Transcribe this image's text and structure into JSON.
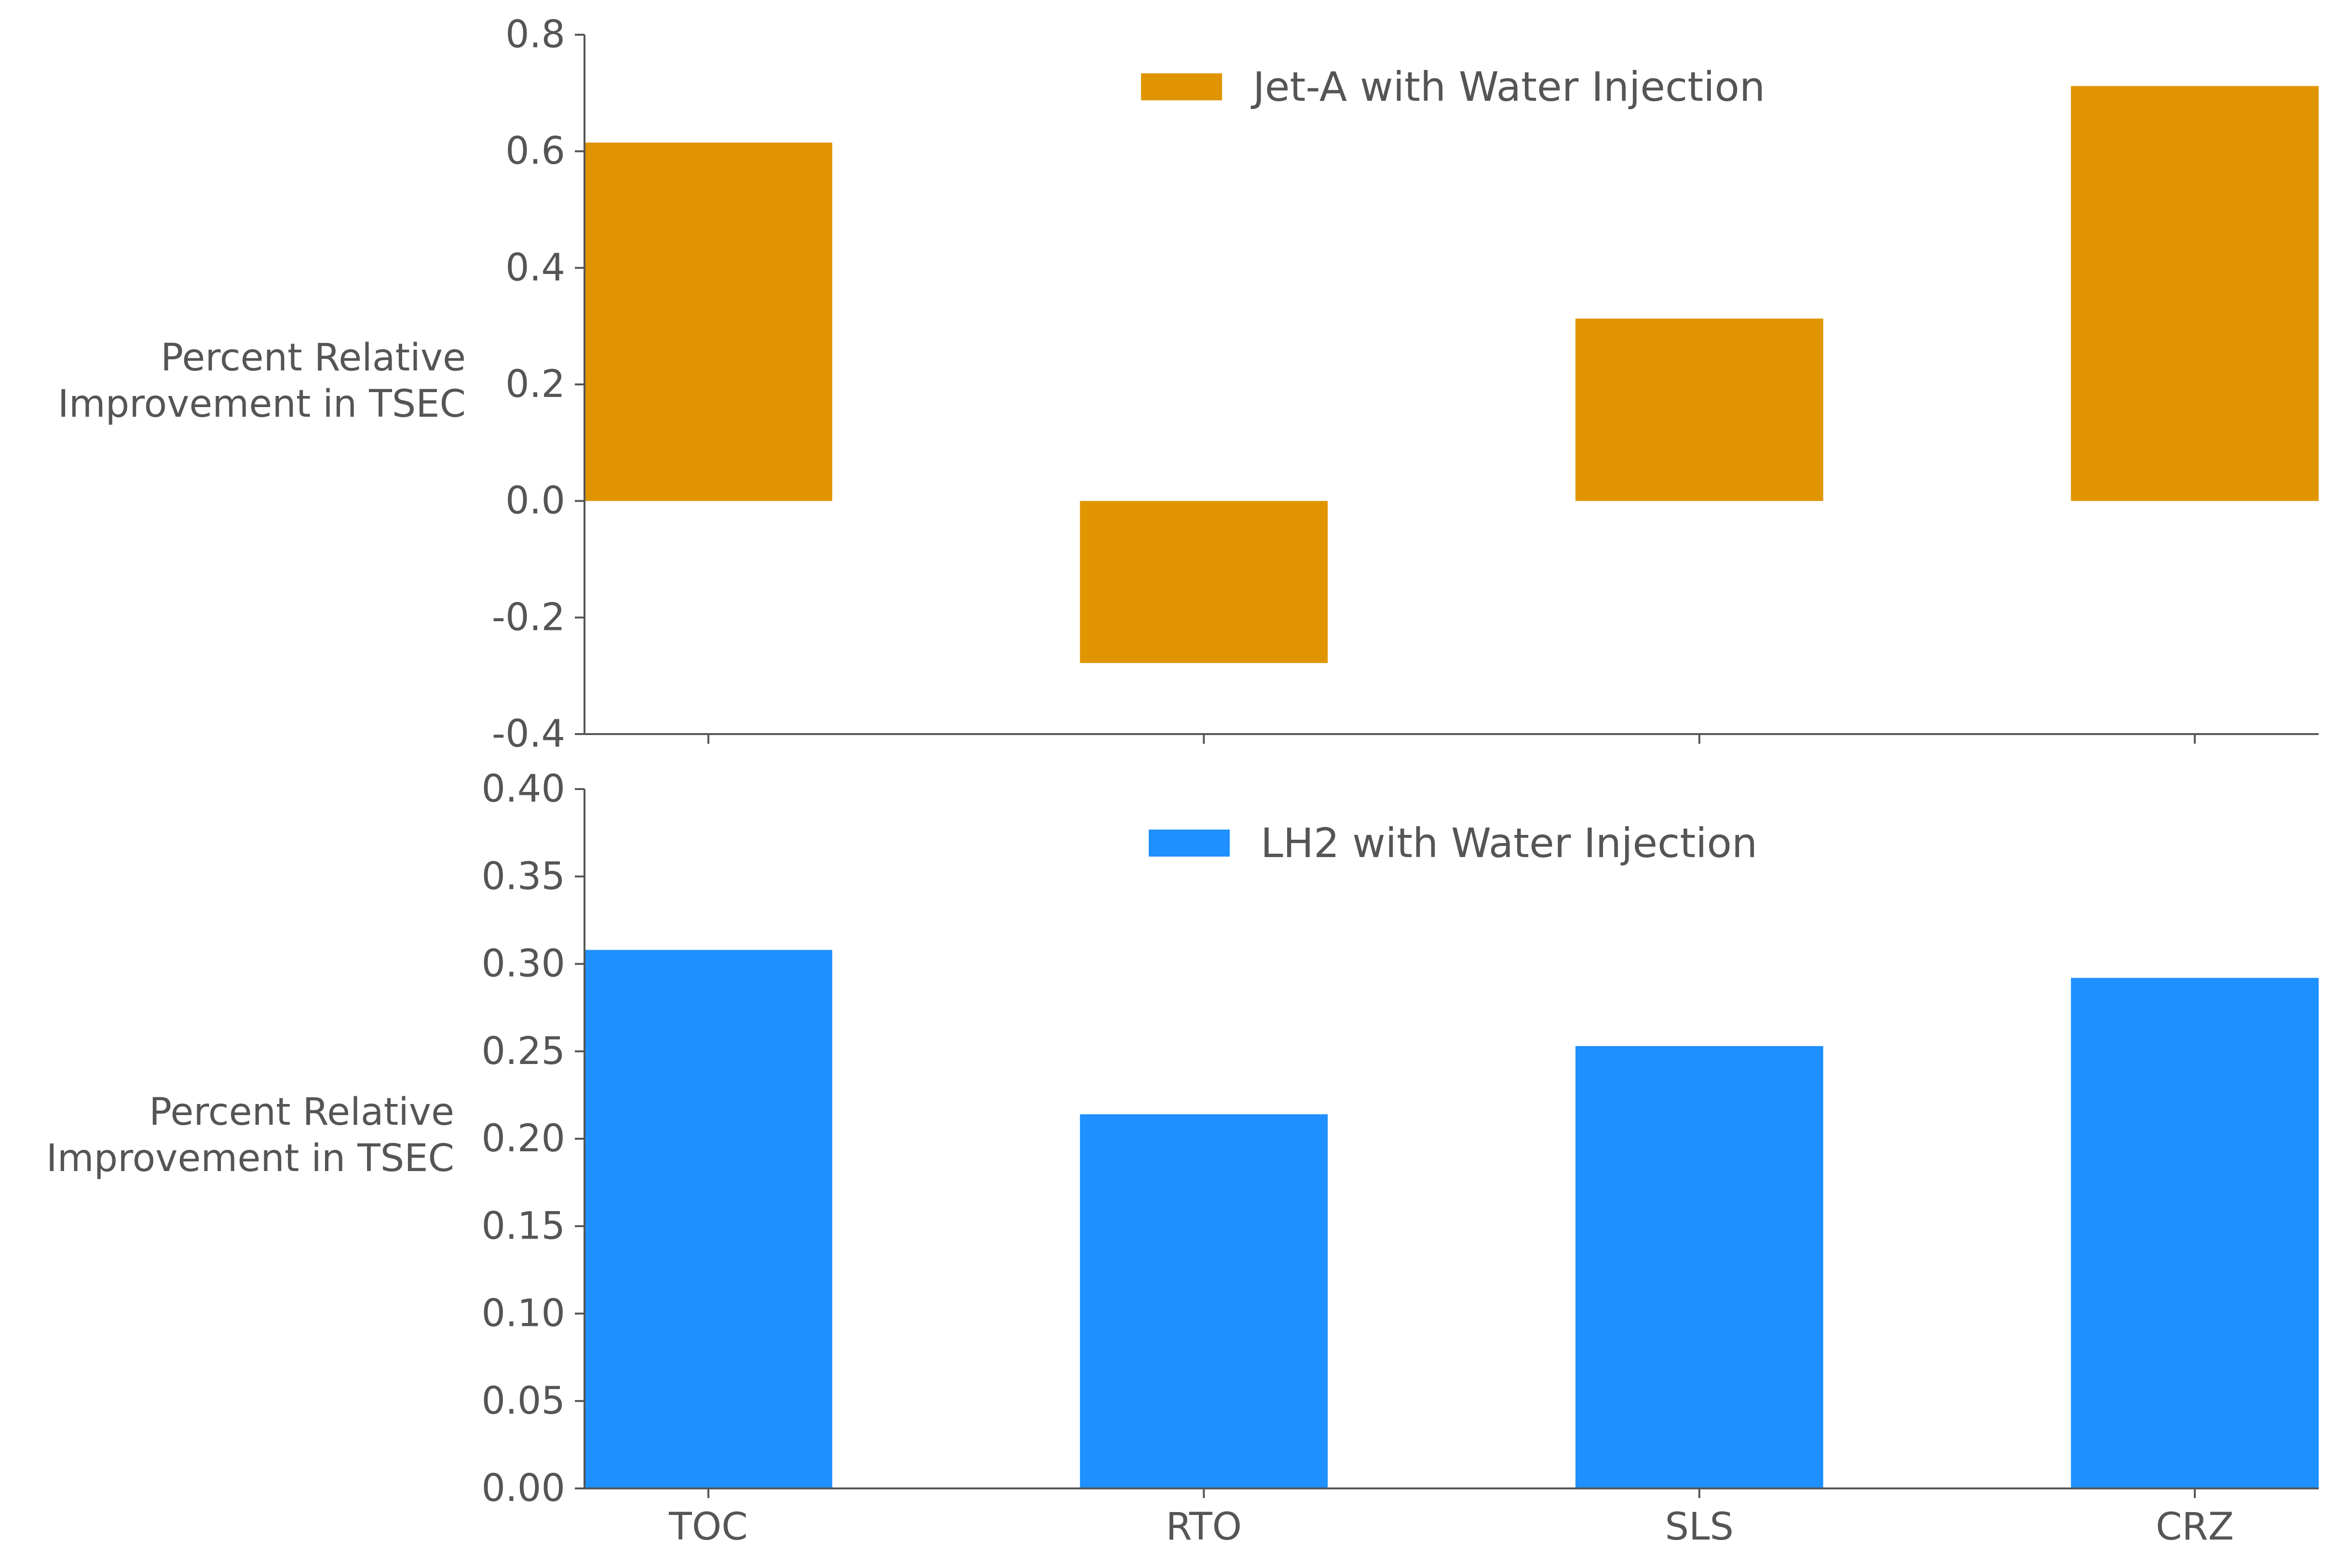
{
  "chart_data": [
    {
      "type": "bar",
      "categories": [
        "TOC",
        "RTO",
        "SLS",
        "CRZ"
      ],
      "series": [
        {
          "name": "Jet-A with Water Injection",
          "values": [
            0.615,
            -0.278,
            0.313,
            0.712
          ],
          "color": "#e09500"
        }
      ],
      "ylabel": [
        "Percent Relative",
        "Improvement in TSEC"
      ],
      "ylim": [
        -0.4,
        0.8
      ],
      "yticks": [
        "-0.4",
        "-0.2",
        "0.0",
        "0.2",
        "0.4",
        "0.6",
        "0.8"
      ],
      "show_xtick_labels": false,
      "grid": false,
      "legend": "top-center"
    },
    {
      "type": "bar",
      "categories": [
        "TOC",
        "RTO",
        "SLS",
        "CRZ"
      ],
      "series": [
        {
          "name": "LH2 with Water Injection",
          "values": [
            0.308,
            0.214,
            0.253,
            0.292
          ],
          "color": "#1e90ff"
        }
      ],
      "ylabel": [
        "Percent Relative",
        "Improvement in TSEC"
      ],
      "ylim": [
        0.0,
        0.4
      ],
      "yticks": [
        "0.00",
        "0.05",
        "0.10",
        "0.15",
        "0.20",
        "0.25",
        "0.30",
        "0.35",
        "0.40"
      ],
      "show_xtick_labels": true,
      "grid": false,
      "legend": "top-center"
    }
  ]
}
